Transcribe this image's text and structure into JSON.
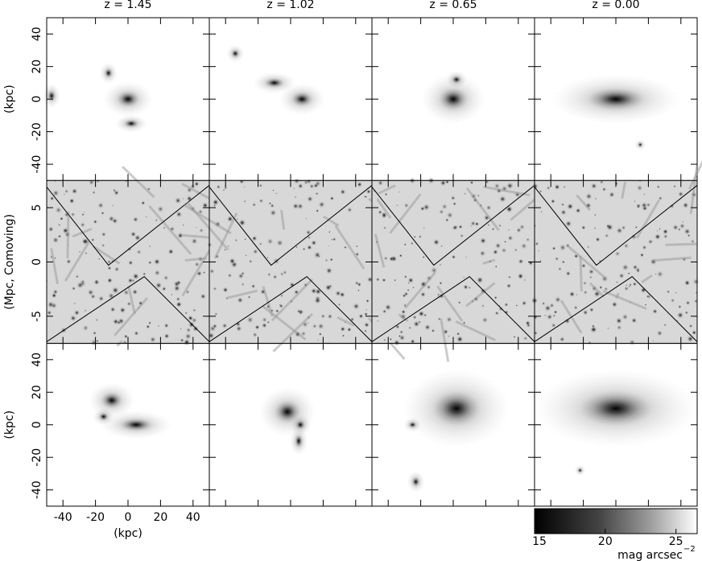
{
  "columns": [
    "z = 1.45",
    "z = 1.02",
    "z = 0.65",
    "z = 0.00"
  ],
  "rows": [
    {
      "ylabel": "(kpc)",
      "ylim": [
        -50,
        50
      ],
      "yticks": [
        -40,
        -20,
        0,
        20,
        40
      ]
    },
    {
      "ylabel": "(Mpc, Comoving)",
      "ylim": [
        -7.5,
        7.5
      ],
      "yticks": [
        -5,
        0,
        5
      ]
    },
    {
      "ylabel": "(kpc)",
      "ylim": [
        -50,
        50
      ],
      "yticks": [
        -40,
        -20,
        0,
        20,
        40
      ]
    }
  ],
  "xaxis": {
    "label": "(kpc)",
    "xlim": [
      -50,
      50
    ],
    "xticks": [
      -40,
      -20,
      0,
      20,
      40
    ]
  },
  "colorbar": {
    "lim": [
      15,
      26.5
    ],
    "ticks": [
      15,
      20,
      25
    ],
    "label": "mag arcsec",
    "label_power": "−2"
  }
}
